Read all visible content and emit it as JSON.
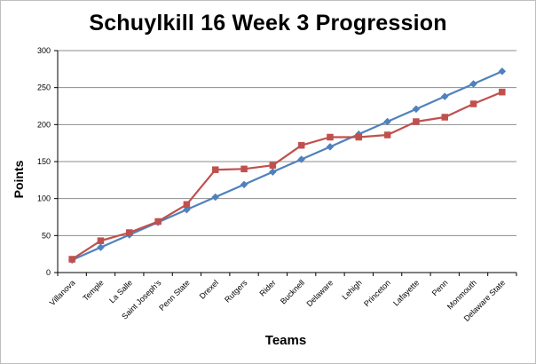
{
  "chart_data": {
    "type": "line",
    "title": "Schuylkill 16 Week 3 Progression",
    "xlabel": "Teams",
    "ylabel": "Points",
    "ylim": [
      0,
      300
    ],
    "yticks": [
      0,
      50,
      100,
      150,
      200,
      250,
      300
    ],
    "grid": true,
    "legend": "none",
    "categories": [
      "Villanova",
      "Temple",
      "La Salle",
      "Saint Joseph's",
      "Penn State",
      "Drexel",
      "Rutgers",
      "Rider",
      "Bucknell",
      "Delaware",
      "Lehigh",
      "Princeton",
      "Lafayette",
      "Penn",
      "Monmouth",
      "Delaware State"
    ],
    "series": [
      {
        "color": "#4f81bd",
        "marker": "diamond",
        "values": [
          17,
          34,
          51,
          68,
          85,
          102,
          119,
          136,
          153,
          170,
          187,
          204,
          221,
          238,
          255,
          272
        ]
      },
      {
        "color": "#c0504d",
        "marker": "square",
        "values": [
          18,
          43,
          54,
          69,
          92,
          139,
          140,
          145,
          172,
          183,
          183,
          186,
          204,
          210,
          228,
          244
        ]
      }
    ]
  }
}
